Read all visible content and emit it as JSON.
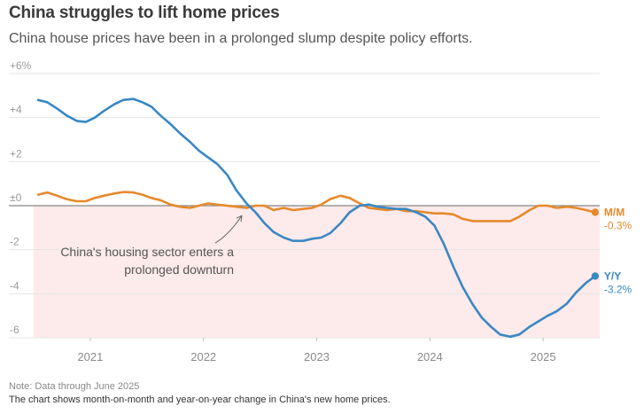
{
  "header": {
    "title": "China struggles to lift home prices",
    "subtitle": "China house prices have been in a prolonged slump despite policy efforts."
  },
  "footer": {
    "note": "Note: Data through June 2025",
    "caption": "The chart shows month-on-month and year-on-year change in China's new home prices."
  },
  "colors": {
    "yy": "#3a88c4",
    "mm": "#e58a2c",
    "negative_band": "#fdeaea",
    "zero_line": "#888888",
    "grid": "#e5e5e5"
  },
  "chart_data": {
    "type": "line",
    "title": "China struggles to lift home prices",
    "subtitle": "China house prices have been in a prolonged slump despite policy efforts.",
    "ylim": [
      -6,
      6
    ],
    "yticks": [
      {
        "value": 6,
        "label": "+6%"
      },
      {
        "value": 4,
        "label": "+4"
      },
      {
        "value": 2,
        "label": "+2"
      },
      {
        "value": 0,
        "label": "±0"
      },
      {
        "value": -2,
        "label": "-2"
      },
      {
        "value": -4,
        "label": "-4"
      },
      {
        "value": -6,
        "label": "-6"
      }
    ],
    "xlim": [
      2020.5,
      2025.5
    ],
    "xticks": [
      {
        "value": 2021.0,
        "label": "2021"
      },
      {
        "value": 2022.0,
        "label": "2022"
      },
      {
        "value": 2023.0,
        "label": "2023"
      },
      {
        "value": 2024.0,
        "label": "2024"
      },
      {
        "value": 2025.0,
        "label": "2025"
      }
    ],
    "negative_region_shaded": true,
    "annotation": {
      "text_lines": [
        "China's housing sector enters a",
        "prolonged downturn"
      ],
      "x": 2022.37,
      "y": -0.25
    },
    "series": [
      {
        "name": "M/M",
        "end_label": "M/M",
        "end_value": "-0.3%",
        "color": "#e58a2c",
        "points": [
          [
            2020.54,
            0.5
          ],
          [
            2020.62,
            0.6
          ],
          [
            2020.71,
            0.45
          ],
          [
            2020.79,
            0.3
          ],
          [
            2020.88,
            0.2
          ],
          [
            2020.96,
            0.2
          ],
          [
            2021.04,
            0.35
          ],
          [
            2021.12,
            0.45
          ],
          [
            2021.21,
            0.55
          ],
          [
            2021.29,
            0.62
          ],
          [
            2021.38,
            0.6
          ],
          [
            2021.46,
            0.5
          ],
          [
            2021.54,
            0.35
          ],
          [
            2021.62,
            0.25
          ],
          [
            2021.71,
            0.05
          ],
          [
            2021.79,
            -0.05
          ],
          [
            2021.88,
            -0.1
          ],
          [
            2021.96,
            0.0
          ],
          [
            2022.04,
            0.1
          ],
          [
            2022.12,
            0.05
          ],
          [
            2022.21,
            0.0
          ],
          [
            2022.29,
            -0.05
          ],
          [
            2022.38,
            -0.1
          ],
          [
            2022.46,
            0.0
          ],
          [
            2022.54,
            0.0
          ],
          [
            2022.62,
            -0.2
          ],
          [
            2022.71,
            -0.1
          ],
          [
            2022.79,
            -0.2
          ],
          [
            2022.88,
            -0.15
          ],
          [
            2022.96,
            -0.1
          ],
          [
            2023.04,
            0.05
          ],
          [
            2023.12,
            0.3
          ],
          [
            2023.21,
            0.45
          ],
          [
            2023.29,
            0.35
          ],
          [
            2023.38,
            0.1
          ],
          [
            2023.46,
            -0.1
          ],
          [
            2023.54,
            -0.15
          ],
          [
            2023.62,
            -0.2
          ],
          [
            2023.71,
            -0.15
          ],
          [
            2023.79,
            -0.25
          ],
          [
            2023.88,
            -0.25
          ],
          [
            2023.96,
            -0.3
          ],
          [
            2024.04,
            -0.35
          ],
          [
            2024.12,
            -0.35
          ],
          [
            2024.21,
            -0.4
          ],
          [
            2024.29,
            -0.6
          ],
          [
            2024.38,
            -0.7
          ],
          [
            2024.46,
            -0.7
          ],
          [
            2024.54,
            -0.7
          ],
          [
            2024.62,
            -0.7
          ],
          [
            2024.71,
            -0.7
          ],
          [
            2024.79,
            -0.5
          ],
          [
            2024.88,
            -0.2
          ],
          [
            2024.96,
            0.0
          ],
          [
            2025.04,
            0.0
          ],
          [
            2025.12,
            -0.1
          ],
          [
            2025.21,
            -0.05
          ],
          [
            2025.29,
            -0.1
          ],
          [
            2025.38,
            -0.2
          ],
          [
            2025.46,
            -0.3
          ]
        ]
      },
      {
        "name": "Y/Y",
        "end_label": "Y/Y",
        "end_value": "-3.2%",
        "color": "#3a88c4",
        "points": [
          [
            2020.54,
            4.8
          ],
          [
            2020.62,
            4.7
          ],
          [
            2020.71,
            4.4
          ],
          [
            2020.79,
            4.1
          ],
          [
            2020.88,
            3.85
          ],
          [
            2020.96,
            3.8
          ],
          [
            2021.04,
            4.0
          ],
          [
            2021.12,
            4.3
          ],
          [
            2021.21,
            4.6
          ],
          [
            2021.29,
            4.8
          ],
          [
            2021.38,
            4.85
          ],
          [
            2021.46,
            4.7
          ],
          [
            2021.54,
            4.5
          ],
          [
            2021.62,
            4.1
          ],
          [
            2021.71,
            3.7
          ],
          [
            2021.79,
            3.3
          ],
          [
            2021.88,
            2.9
          ],
          [
            2021.96,
            2.5
          ],
          [
            2022.04,
            2.2
          ],
          [
            2022.12,
            1.9
          ],
          [
            2022.21,
            1.4
          ],
          [
            2022.29,
            0.7
          ],
          [
            2022.38,
            0.1
          ],
          [
            2022.46,
            -0.3
          ],
          [
            2022.54,
            -0.8
          ],
          [
            2022.62,
            -1.2
          ],
          [
            2022.71,
            -1.45
          ],
          [
            2022.79,
            -1.6
          ],
          [
            2022.88,
            -1.6
          ],
          [
            2022.96,
            -1.5
          ],
          [
            2023.04,
            -1.45
          ],
          [
            2023.12,
            -1.25
          ],
          [
            2023.21,
            -0.8
          ],
          [
            2023.29,
            -0.3
          ],
          [
            2023.38,
            0.0
          ],
          [
            2023.46,
            0.05
          ],
          [
            2023.54,
            -0.05
          ],
          [
            2023.62,
            -0.1
          ],
          [
            2023.71,
            -0.15
          ],
          [
            2023.79,
            -0.15
          ],
          [
            2023.88,
            -0.3
          ],
          [
            2023.96,
            -0.5
          ],
          [
            2024.04,
            -0.9
          ],
          [
            2024.12,
            -1.7
          ],
          [
            2024.21,
            -2.8
          ],
          [
            2024.29,
            -3.7
          ],
          [
            2024.38,
            -4.5
          ],
          [
            2024.46,
            -5.1
          ],
          [
            2024.54,
            -5.5
          ],
          [
            2024.62,
            -5.85
          ],
          [
            2024.71,
            -5.95
          ],
          [
            2024.79,
            -5.85
          ],
          [
            2024.88,
            -5.5
          ],
          [
            2024.96,
            -5.25
          ],
          [
            2025.04,
            -5.0
          ],
          [
            2025.12,
            -4.8
          ],
          [
            2025.21,
            -4.45
          ],
          [
            2025.29,
            -3.95
          ],
          [
            2025.38,
            -3.5
          ],
          [
            2025.46,
            -3.2
          ]
        ]
      }
    ]
  }
}
